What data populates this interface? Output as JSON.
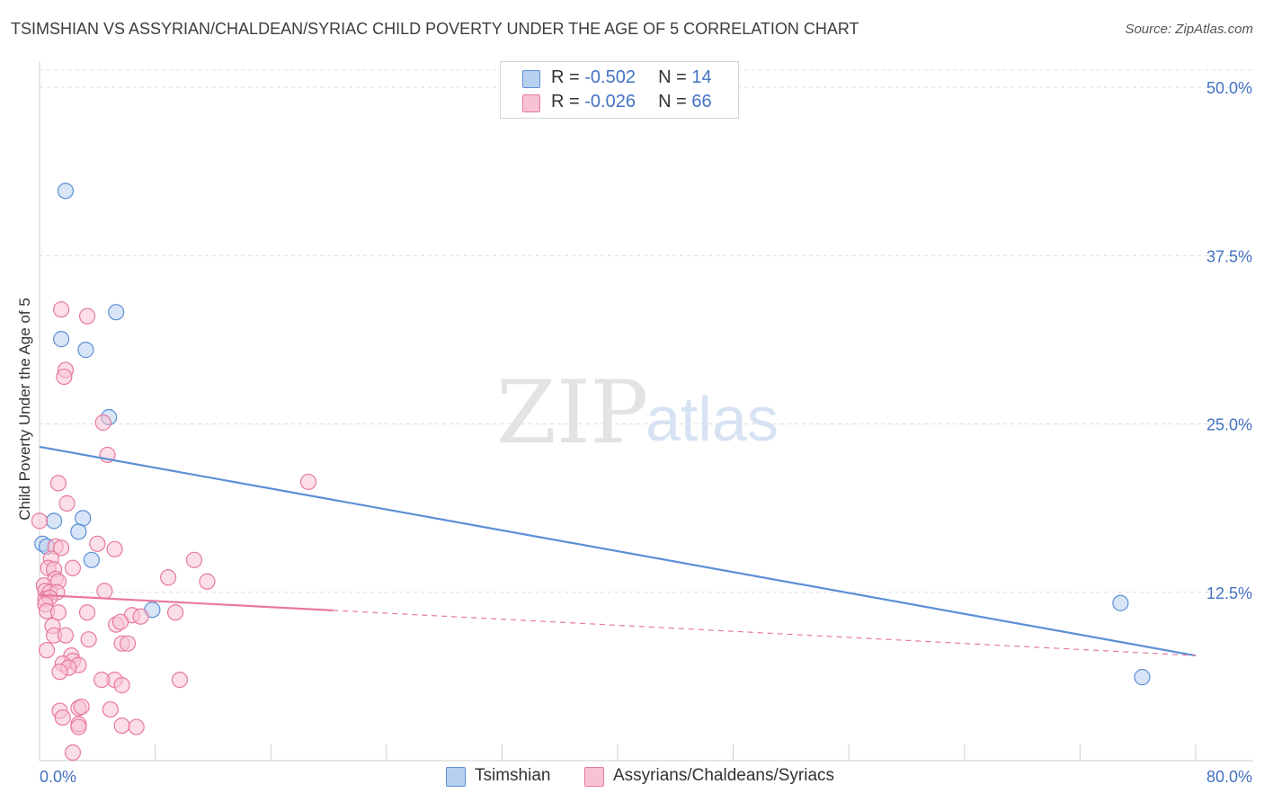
{
  "header": {
    "title": "TSIMSHIAN VS ASSYRIAN/CHALDEAN/SYRIAC CHILD POVERTY UNDER THE AGE OF 5 CORRELATION CHART",
    "source": "Source: ZipAtlas.com"
  },
  "watermark": {
    "zip": "ZIP",
    "atlas": "atlas"
  },
  "legend": {
    "r_label": "R = ",
    "n_label": "N = ",
    "rows": [
      {
        "r": "-0.502",
        "n": "14"
      },
      {
        "r": "-0.026",
        "n": "66"
      }
    ]
  },
  "chart_data": {
    "type": "scatter",
    "title": "TSIMSHIAN VS ASSYRIAN/CHALDEAN/SYRIAC CHILD POVERTY UNDER THE AGE OF 5 CORRELATION CHART",
    "xlabel": "",
    "ylabel": "Child Poverty Under the Age of 5",
    "xlim": [
      0,
      80
    ],
    "ylim": [
      0,
      50
    ],
    "x_tick_labels": [
      "0.0%",
      "80.0%"
    ],
    "y_ticks": [
      {
        "value": 12.5,
        "label": "12.5%"
      },
      {
        "value": 25.0,
        "label": "25.0%"
      },
      {
        "value": 37.5,
        "label": "37.5%"
      },
      {
        "value": 50.0,
        "label": "50.0%"
      }
    ],
    "series": [
      {
        "name": "Tsimshian",
        "color": "#5b8fd6",
        "fill": "#b8d0f0",
        "r": "-0.502",
        "n": "14",
        "trend": {
          "x0": 0,
          "y0": 23.3,
          "x1": 80,
          "y1": 7.8,
          "solid_until": 80
        },
        "points": [
          [
            1.8,
            42.3
          ],
          [
            5.3,
            33.3
          ],
          [
            1.5,
            31.3
          ],
          [
            3.2,
            30.5
          ],
          [
            4.8,
            25.5
          ],
          [
            1.0,
            17.8
          ],
          [
            3.0,
            18.0
          ],
          [
            2.7,
            17.0
          ],
          [
            0.2,
            16.1
          ],
          [
            0.5,
            15.9
          ],
          [
            3.6,
            14.9
          ],
          [
            7.8,
            11.2
          ],
          [
            74.8,
            11.7
          ],
          [
            76.3,
            6.2
          ]
        ]
      },
      {
        "name": "Assyrians/Chaldeans/Syriacs",
        "color": "#e8799f",
        "fill": "#f7c2d4",
        "r": "-0.026",
        "n": "66",
        "trend": {
          "x0": 0,
          "y0": 12.3,
          "x1": 80,
          "y1": 7.8,
          "solid_until": 20.3
        },
        "points": [
          [
            0.0,
            17.8
          ],
          [
            1.5,
            33.5
          ],
          [
            3.3,
            33.0
          ],
          [
            1.8,
            29.0
          ],
          [
            1.7,
            28.5
          ],
          [
            4.4,
            25.1
          ],
          [
            4.7,
            22.7
          ],
          [
            18.6,
            20.7
          ],
          [
            1.3,
            20.6
          ],
          [
            1.9,
            19.1
          ],
          [
            4.0,
            16.1
          ],
          [
            1.1,
            15.9
          ],
          [
            1.5,
            15.8
          ],
          [
            5.2,
            15.7
          ],
          [
            0.8,
            15.0
          ],
          [
            10.7,
            14.9
          ],
          [
            0.6,
            14.3
          ],
          [
            1.0,
            14.2
          ],
          [
            2.3,
            14.3
          ],
          [
            8.9,
            13.6
          ],
          [
            11.6,
            13.3
          ],
          [
            1.1,
            13.5
          ],
          [
            1.3,
            13.3
          ],
          [
            0.3,
            13.0
          ],
          [
            0.4,
            12.6
          ],
          [
            0.7,
            12.5
          ],
          [
            1.2,
            12.5
          ],
          [
            4.5,
            12.6
          ],
          [
            0.4,
            12.0
          ],
          [
            0.7,
            12.1
          ],
          [
            0.4,
            11.6
          ],
          [
            0.5,
            11.1
          ],
          [
            1.3,
            11.0
          ],
          [
            3.3,
            11.0
          ],
          [
            9.4,
            11.0
          ],
          [
            6.4,
            10.8
          ],
          [
            7.0,
            10.7
          ],
          [
            0.9,
            10.0
          ],
          [
            5.3,
            10.1
          ],
          [
            5.6,
            10.3
          ],
          [
            1.0,
            9.3
          ],
          [
            1.8,
            9.3
          ],
          [
            3.4,
            9.0
          ],
          [
            5.7,
            8.7
          ],
          [
            6.1,
            8.7
          ],
          [
            0.5,
            8.2
          ],
          [
            2.2,
            7.8
          ],
          [
            2.3,
            7.4
          ],
          [
            1.6,
            7.2
          ],
          [
            2.7,
            7.1
          ],
          [
            2.0,
            6.9
          ],
          [
            1.4,
            6.6
          ],
          [
            5.2,
            6.0
          ],
          [
            4.3,
            6.0
          ],
          [
            9.7,
            6.0
          ],
          [
            5.7,
            5.6
          ],
          [
            2.7,
            3.9
          ],
          [
            2.9,
            4.0
          ],
          [
            4.9,
            3.8
          ],
          [
            1.4,
            3.7
          ],
          [
            1.6,
            3.2
          ],
          [
            2.7,
            2.7
          ],
          [
            5.7,
            2.6
          ],
          [
            6.7,
            2.5
          ],
          [
            2.7,
            2.5
          ],
          [
            2.3,
            0.6
          ]
        ]
      }
    ]
  }
}
